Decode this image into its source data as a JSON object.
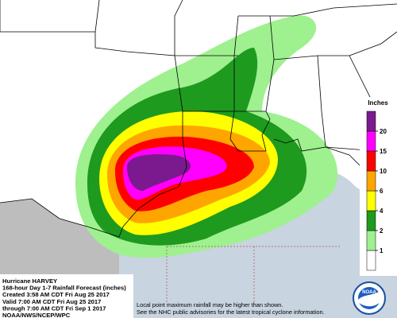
{
  "header": {
    "title_lines": [
      "Hurricane HARVEY",
      "168-hour Day 1-7 Rainfall Forecast (inches)",
      "Created 3:58 AM CDT Fri Aug 25 2017",
      "Valid 7:00 AM CDT Fri Aug 25 2017",
      "through 7:00 AM CDT Fri Sep 1 2017",
      "NOAA/NWS/NCEP/WPC"
    ]
  },
  "legend": {
    "title": "Inches",
    "ticks": [
      1,
      2,
      4,
      6,
      10,
      15,
      20
    ],
    "colors": [
      "#ffffff",
      "#9ff08f",
      "#1e9a1e",
      "#ffff00",
      "#ffa500",
      "#ff0000",
      "#ff00ff",
      "#7a1a8e"
    ]
  },
  "notes": [
    "Local point maximum rainfall may be higher than shown.",
    "See the NHC public advisories for the latest tropical cyclone information."
  ],
  "logo": {
    "text": "NOAA"
  }
}
